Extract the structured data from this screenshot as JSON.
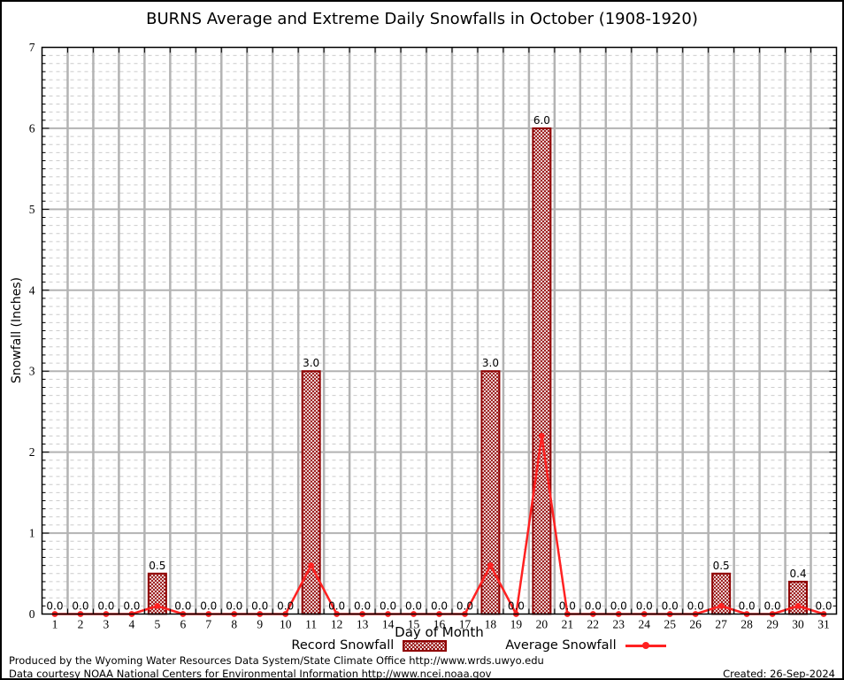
{
  "colors": {
    "bar": "#8f0000",
    "line": "#ff2121",
    "grid_major": "#b3b3b3",
    "grid_minor": "#cccccc",
    "axis": "#000000"
  },
  "footer": {
    "line1": "Produced by the Wyoming Water Resources Data System/State Climate Office http://www.wrds.uwyo.edu",
    "line2": "Data courtesy NOAA National Centers for Environmental Information http://www.ncei.noaa.gov",
    "created": "Created: 26-Sep-2024"
  },
  "chart_data": {
    "type": "bar",
    "title": "BURNS Average and Extreme Daily Snowfalls in October (1908-1920)",
    "xlabel": "Day of Month",
    "ylabel": "Snowfall (Inches)",
    "x": [
      1,
      2,
      3,
      4,
      5,
      6,
      7,
      8,
      9,
      10,
      11,
      12,
      13,
      14,
      15,
      16,
      17,
      18,
      19,
      20,
      21,
      22,
      23,
      24,
      25,
      26,
      27,
      28,
      29,
      30,
      31
    ],
    "series": [
      {
        "name": "Record Snowfall",
        "type": "bar",
        "values": [
          0,
          0,
          0,
          0,
          0.5,
          0,
          0,
          0,
          0,
          0,
          3.0,
          0,
          0,
          0,
          0,
          0,
          0,
          3.0,
          0,
          6.0,
          0,
          0,
          0,
          0,
          0,
          0,
          0.5,
          0,
          0,
          0.4,
          0
        ]
      },
      {
        "name": "Average Snowfall",
        "type": "line",
        "values": [
          0,
          0,
          0,
          0,
          0.1,
          0,
          0,
          0,
          0,
          0,
          0.6,
          0,
          0,
          0,
          0,
          0,
          0,
          0.6,
          0,
          2.2,
          0,
          0,
          0,
          0,
          0,
          0,
          0.1,
          0,
          0,
          0.1,
          0
        ]
      }
    ],
    "ylim": [
      0,
      7
    ],
    "yticks": [
      0,
      1,
      2,
      3,
      4,
      5,
      6,
      7
    ],
    "y_minor_step": 0.1,
    "grid": "on",
    "bar_value_labels": "one decimal, all days labeled",
    "legend_position": "below x-axis label"
  }
}
